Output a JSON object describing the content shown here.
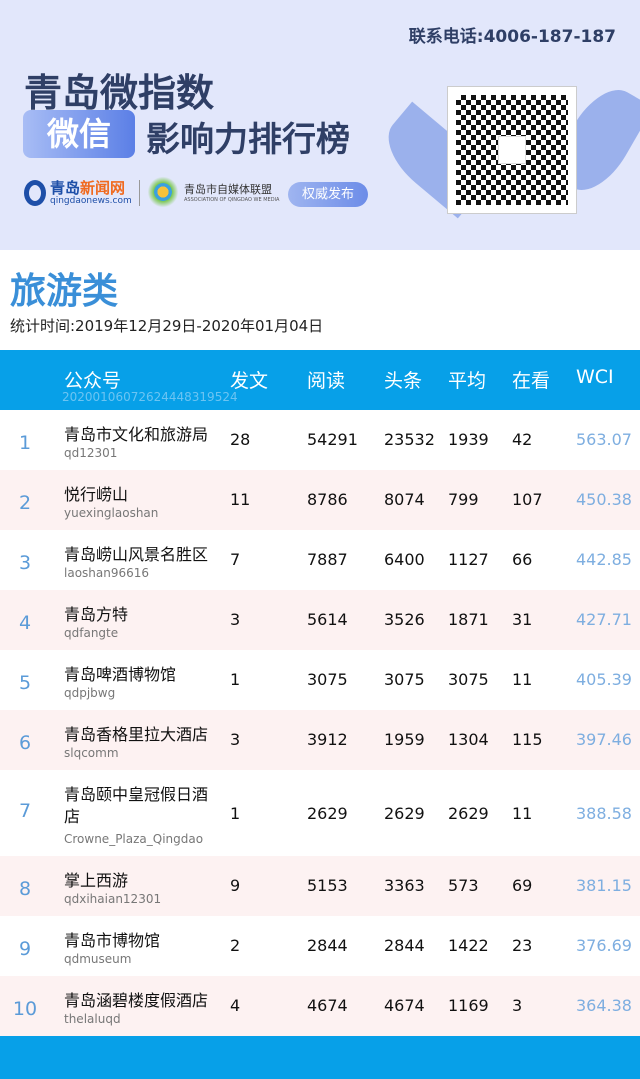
{
  "banner": {
    "phone": "联系电话:4006-187-187",
    "title_line1": "青岛微指数",
    "badge_wechat": "微信",
    "title_line2": "影响力排行榜",
    "logo1_name_a": "青岛",
    "logo1_name_b": "新闻网",
    "logo1_url": "qingdaonews.com",
    "logo2_name": "青岛市自媒体联盟",
    "logo2_en": "ASSOCIATION OF QINGDAO WE MEDIA",
    "publish_badge": "权威发布"
  },
  "section": {
    "title": "旅游类",
    "period": "统计时间:2019年12月29日-2020年01月04日"
  },
  "table": {
    "headers": {
      "name": "公众号",
      "posts": "发文",
      "reads": "阅读",
      "headline": "头条",
      "avg": "平均",
      "likes": "在看",
      "wci": "WCI"
    },
    "code": "20200106072624448319524",
    "rows": [
      {
        "rank": "1",
        "name": "青岛市文化和旅游局",
        "id": "qd12301",
        "posts": "28",
        "reads": "54291",
        "headline": "23532",
        "avg": "1939",
        "likes": "42",
        "wci": "563.07"
      },
      {
        "rank": "2",
        "name": "悦行崂山",
        "id": "yuexinglaoshan",
        "posts": "11",
        "reads": "8786",
        "headline": "8074",
        "avg": "799",
        "likes": "107",
        "wci": "450.38"
      },
      {
        "rank": "3",
        "name": "青岛崂山风景名胜区",
        "id": "laoshan96616",
        "posts": "7",
        "reads": "7887",
        "headline": "6400",
        "avg": "1127",
        "likes": "66",
        "wci": "442.85"
      },
      {
        "rank": "4",
        "name": "青岛方特",
        "id": "qdfangte",
        "posts": "3",
        "reads": "5614",
        "headline": "3526",
        "avg": "1871",
        "likes": "31",
        "wci": "427.71"
      },
      {
        "rank": "5",
        "name": "青岛啤酒博物馆",
        "id": "qdpjbwg",
        "posts": "1",
        "reads": "3075",
        "headline": "3075",
        "avg": "3075",
        "likes": "11",
        "wci": "405.39"
      },
      {
        "rank": "6",
        "name": "青岛香格里拉大酒店",
        "id": "slqcomm",
        "posts": "3",
        "reads": "3912",
        "headline": "1959",
        "avg": "1304",
        "likes": "115",
        "wci": "397.46"
      },
      {
        "rank": "7",
        "name": "青岛颐中皇冠假日酒店",
        "id": "Crowne_Plaza_Qingdao",
        "posts": "1",
        "reads": "2629",
        "headline": "2629",
        "avg": "2629",
        "likes": "11",
        "wci": "388.58"
      },
      {
        "rank": "8",
        "name": "掌上西游",
        "id": "qdxihaian12301",
        "posts": "9",
        "reads": "5153",
        "headline": "3363",
        "avg": "573",
        "likes": "69",
        "wci": "381.15"
      },
      {
        "rank": "9",
        "name": "青岛市博物馆",
        "id": "qdmuseum",
        "posts": "2",
        "reads": "2844",
        "headline": "2844",
        "avg": "1422",
        "likes": "23",
        "wci": "376.69"
      },
      {
        "rank": "10",
        "name": "青岛涵碧楼度假酒店",
        "id": "thelaluqd",
        "posts": "4",
        "reads": "4674",
        "headline": "4674",
        "avg": "1169",
        "likes": "3",
        "wci": "364.38"
      }
    ]
  }
}
